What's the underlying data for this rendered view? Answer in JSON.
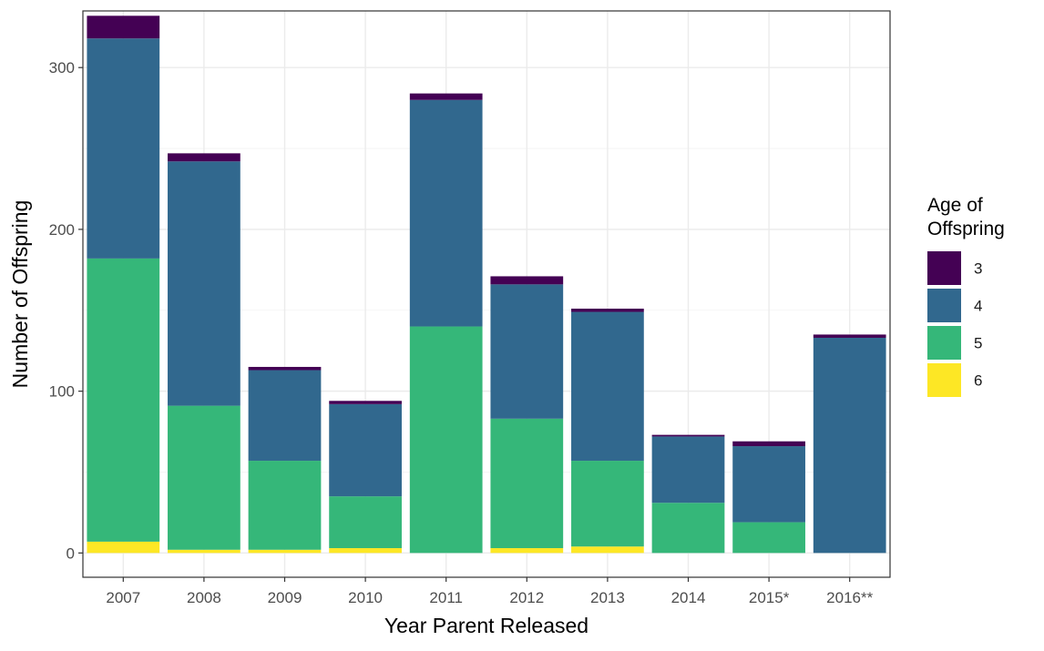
{
  "chart_data": {
    "type": "bar",
    "stacked": true,
    "title": "",
    "xlabel": "Year Parent Released",
    "ylabel": "Number of Offspring",
    "ylim": [
      -15,
      335
    ],
    "yticks": [
      0,
      100,
      200,
      300
    ],
    "grid": true,
    "legend_position": "right",
    "legend_title": "Age of Offspring",
    "legend_title_lines": [
      "Age of",
      "Offspring"
    ],
    "categories": [
      "2007",
      "2008",
      "2009",
      "2010",
      "2011",
      "2012",
      "2013",
      "2014",
      "2015*",
      "2016**"
    ],
    "series": [
      {
        "name": "3",
        "color": "#440154",
        "values": [
          14,
          5,
          2,
          2,
          4,
          5,
          2,
          1,
          3,
          2
        ]
      },
      {
        "name": "4",
        "color": "#31688e",
        "values": [
          136,
          151,
          56,
          57,
          140,
          83,
          92,
          41,
          47,
          133
        ]
      },
      {
        "name": "5",
        "color": "#35b779",
        "values": [
          175,
          89,
          55,
          32,
          140,
          80,
          53,
          31,
          19,
          0
        ]
      },
      {
        "name": "6",
        "color": "#fde725",
        "values": [
          7,
          2,
          2,
          3,
          0,
          3,
          4,
          0,
          0,
          0
        ]
      }
    ]
  }
}
